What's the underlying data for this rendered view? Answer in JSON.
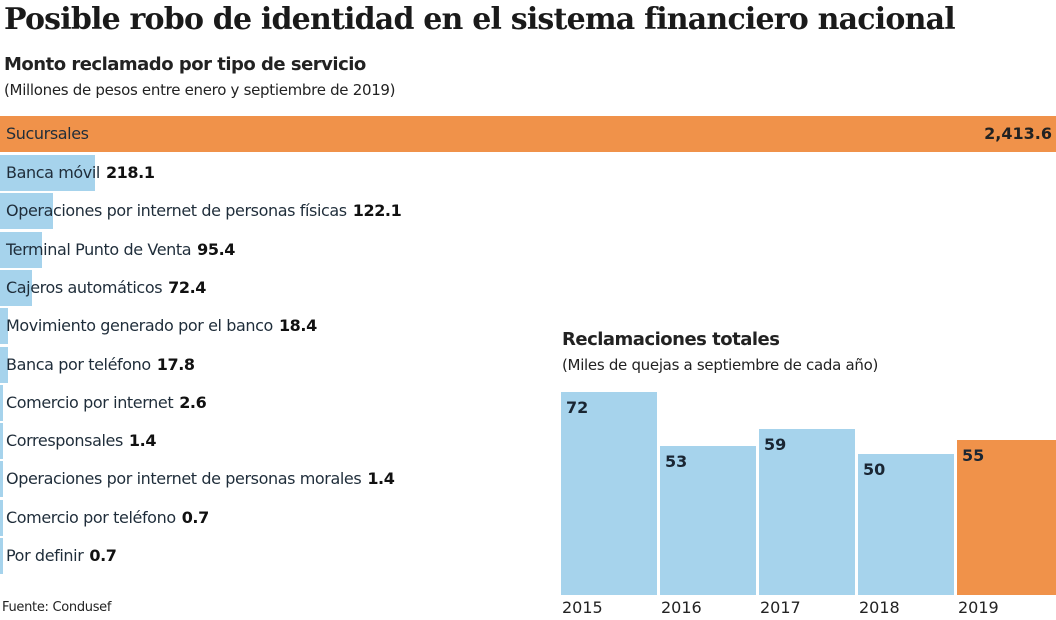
{
  "title": "Posible robo de identidad en el sistema financiero nacional",
  "colors": {
    "highlight": "#f0924a",
    "bar": "#a6d3ec"
  },
  "chart_data": [
    {
      "type": "bar",
      "orientation": "horizontal",
      "title": "Monto reclamado por tipo de servicio",
      "subtitle": "(Millones de pesos entre enero y septiembre de 2019)",
      "categories": [
        "Sucursales",
        "Banca móvil",
        "Operaciones por internet de personas físicas",
        "Terminal Punto de Venta",
        "Cajeros automáticos",
        "Movimiento generado por el banco",
        "Banca por teléfono",
        "Comercio por internet",
        "Corresponsales",
        "Operaciones por internet de personas morales",
        "Comercio por teléfono",
        "Por definir"
      ],
      "values": [
        2413.6,
        218.1,
        122.1,
        95.4,
        72.4,
        18.4,
        17.8,
        2.6,
        1.4,
        1.4,
        0.7,
        0.7
      ],
      "labels": [
        "2,413.6",
        "218.1",
        "122.1",
        "95.4",
        "72.4",
        "18.4",
        "17.8",
        "2.6",
        "1.4",
        "1.4",
        "0.7",
        "0.7"
      ],
      "highlight_index": 0
    },
    {
      "type": "bar",
      "title": "Reclamaciones totales",
      "subtitle": "(Miles de quejas a septiembre de cada año)",
      "categories": [
        "2015",
        "2016",
        "2017",
        "2018",
        "2019"
      ],
      "values": [
        72,
        53,
        59,
        50,
        55
      ],
      "labels": [
        "72",
        "53",
        "59",
        "50",
        "55"
      ],
      "highlight_index": 4
    }
  ],
  "source": "Fuente: Condusef"
}
